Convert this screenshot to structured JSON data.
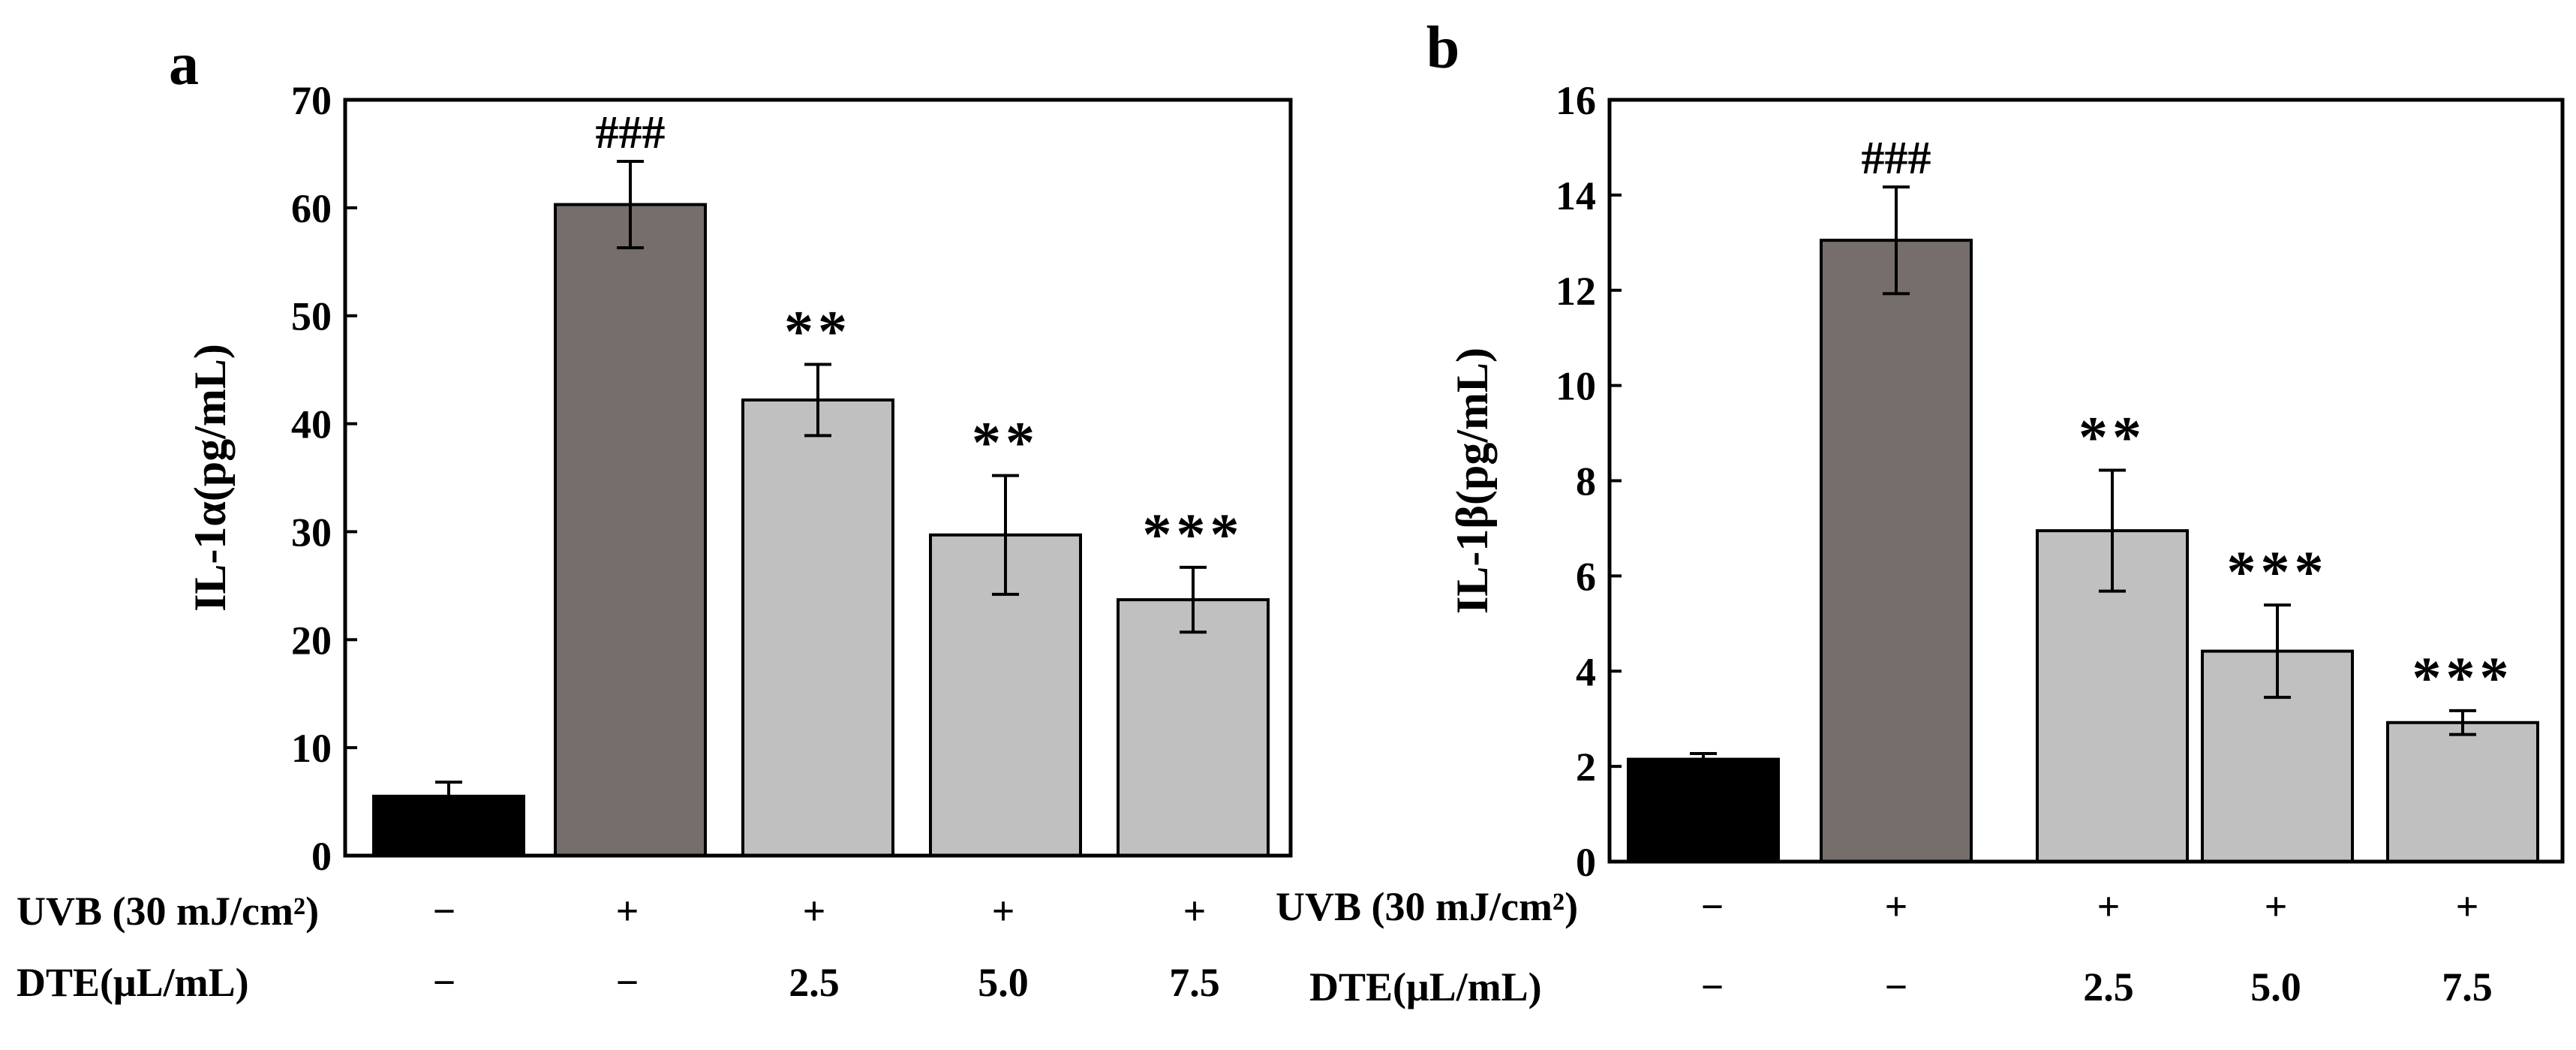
{
  "chart_data": [
    {
      "type": "bar",
      "panel_label": "a",
      "ylabel": "IL-1α(pg/mL)",
      "ylim": [
        0,
        70
      ],
      "ytick_step": 10,
      "ytick_labels": [
        "0",
        "10",
        "20",
        "30",
        "40",
        "50",
        "60",
        "70"
      ],
      "values": [
        5.5,
        60.3,
        42.2,
        29.7,
        23.7
      ],
      "errors": [
        1.3,
        4.0,
        3.3,
        5.5,
        3.0
      ],
      "colors": [
        "#000000",
        "#756e6a",
        "#c0c0c0",
        "#c0c0c0",
        "#c0c0c0"
      ],
      "annotations": [
        "",
        "###",
        "**",
        "**",
        "***"
      ],
      "row_labels": [
        "UVB (30 mJ/cm²)",
        "DTE(μL/mL)"
      ],
      "uvb_values": [
        "−",
        "+",
        "+",
        "+",
        "+"
      ],
      "dte_values": [
        "−",
        "−",
        "2.5",
        "5.0",
        "7.5"
      ]
    },
    {
      "type": "bar",
      "panel_label": "b",
      "ylabel": "IL-1β(pg/mL)",
      "ylim": [
        0,
        16
      ],
      "ytick_step": 2,
      "ytick_labels": [
        "0",
        "2",
        "4",
        "6",
        "8",
        "10",
        "12",
        "14",
        "16"
      ],
      "values": [
        2.15,
        13.05,
        6.95,
        4.42,
        2.92
      ],
      "errors": [
        0.12,
        1.12,
        1.27,
        0.97,
        0.25
      ],
      "colors": [
        "#000000",
        "#756e6a",
        "#c0c0c0",
        "#c0c0c0",
        "#c0c0c0"
      ],
      "annotations": [
        "",
        "###",
        "**",
        "***",
        "***"
      ],
      "row_labels": [
        "UVB (30 mJ/cm²)",
        "DTE(μL/mL)"
      ],
      "uvb_values": [
        "−",
        "+",
        "+",
        "+",
        "+"
      ],
      "dte_values": [
        "−",
        "−",
        "2.5",
        "5.0",
        "7.5"
      ]
    }
  ]
}
